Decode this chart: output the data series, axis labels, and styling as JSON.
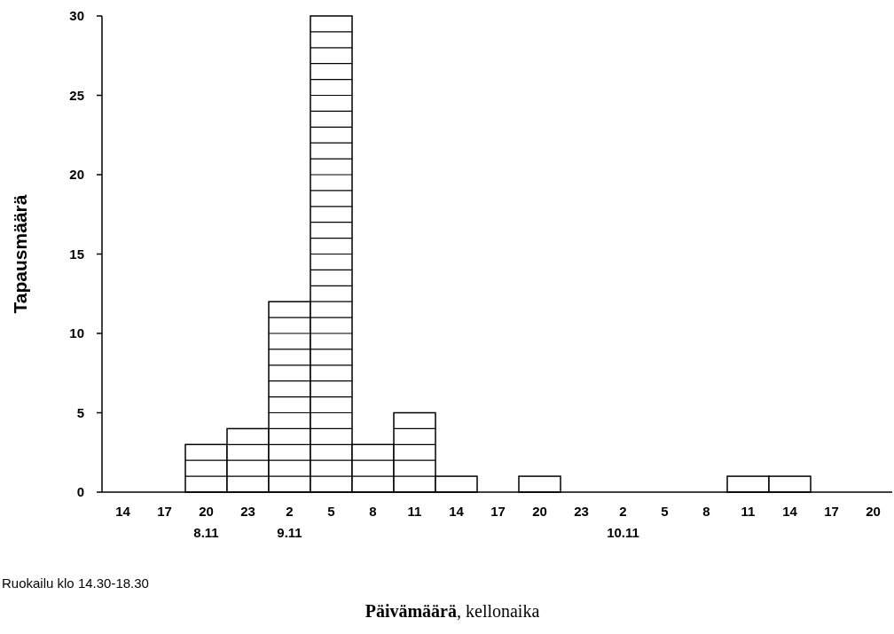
{
  "chart_data": {
    "type": "bar",
    "xlabel": "Päivämäärä, kellonaika",
    "ylabel": "Tapausmäärä",
    "categories": [
      "14",
      "17",
      "20\n8.11",
      "23",
      "2\n9.11",
      "5",
      "8",
      "11",
      "14",
      "17",
      "20",
      "23",
      "2\n10.11",
      "5",
      "8",
      "11",
      "14",
      "17",
      "20"
    ],
    "values": [
      0,
      0,
      3,
      4,
      12,
      30,
      3,
      5,
      1,
      0,
      1,
      0,
      0,
      0,
      0,
      1,
      1,
      0,
      0
    ],
    "color": "#ffffff",
    "ylim": [
      0,
      30
    ],
    "yticks": [
      0,
      5,
      10,
      15,
      20,
      25,
      30
    ],
    "grid": false,
    "annotations": [
      "Ruokailu klo 14.30-18.30"
    ]
  }
}
